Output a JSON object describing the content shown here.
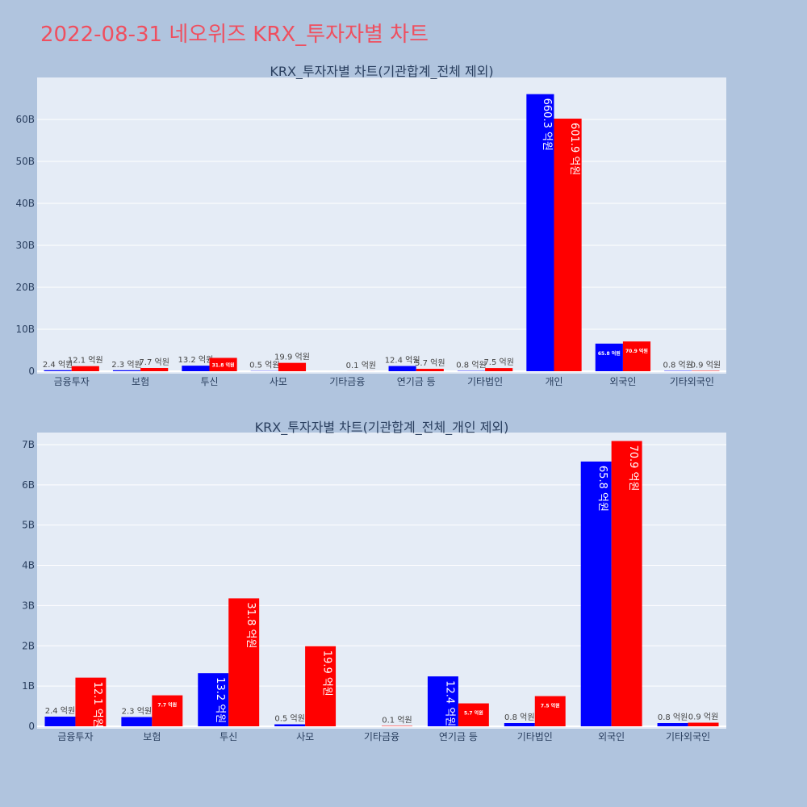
{
  "page": {
    "title": "2022-08-31 네오위즈 KRX_투자자별 차트"
  },
  "colors": {
    "background": "#b0c4de",
    "plot_bg": "#e5ecf6",
    "grid": "#ffffff",
    "series_a": "#0000ff",
    "series_b": "#ff0000",
    "title": "#ef4f5f"
  },
  "chart_data": [
    {
      "type": "bar",
      "title": "KRX_투자자별 차트(기관합계_전체 제외)",
      "categories": [
        "금융투자",
        "보험",
        "투신",
        "사모",
        "기타금융",
        "연기금 등",
        "기타법인",
        "개인",
        "외국인",
        "기타외국인"
      ],
      "ylim": [
        0,
        70
      ],
      "yticks": [
        "0",
        "10B",
        "20B",
        "30B",
        "40B",
        "50B",
        "60B"
      ],
      "series": [
        {
          "color": "#0000ff",
          "values": [
            0.24,
            0.23,
            1.32,
            0.05,
            0.0,
            1.24,
            0.08,
            66.03,
            6.58,
            0.08
          ],
          "labels": [
            "2.4 억원",
            "2.3 억원",
            "13.2 억원",
            "0.5 억원",
            "",
            "12.4 억원",
            "0.8 억원",
            "660.3 억원",
            "65.8 억원",
            "0.8 억원"
          ]
        },
        {
          "color": "#ff0000",
          "values": [
            1.21,
            0.77,
            3.18,
            1.99,
            0.01,
            0.57,
            0.75,
            60.19,
            7.09,
            0.09
          ],
          "labels": [
            "12.1 억원",
            "7.7 억원",
            "31.8 억원",
            "19.9 억원",
            "0.1 억원",
            "5.7 억원",
            "7.5 억원",
            "601.9 억원",
            "70.9 억원",
            "0.9 억원"
          ]
        }
      ]
    },
    {
      "type": "bar",
      "title": "KRX_투자자별 차트(기관합계_전체_개인 제외)",
      "categories": [
        "금융투자",
        "보험",
        "투신",
        "사모",
        "기타금융",
        "연기금 등",
        "기타법인",
        "외국인",
        "기타외국인"
      ],
      "ylim": [
        0,
        7.3
      ],
      "yticks": [
        "0",
        "1B",
        "2B",
        "3B",
        "4B",
        "5B",
        "6B",
        "7B"
      ],
      "series": [
        {
          "color": "#0000ff",
          "values": [
            0.24,
            0.23,
            1.32,
            0.05,
            0.0,
            1.24,
            0.08,
            6.58,
            0.08
          ],
          "labels": [
            "2.4 억원",
            "2.3 억원",
            "13.2 억원",
            "0.5 억원",
            "",
            "12.4 억원",
            "0.8 억원",
            "65.8 억원",
            "0.8 억원"
          ]
        },
        {
          "color": "#ff0000",
          "values": [
            1.21,
            0.77,
            3.18,
            1.99,
            0.01,
            0.57,
            0.75,
            7.09,
            0.09
          ],
          "labels": [
            "12.1 억원",
            "7.7 억원",
            "31.8 억원",
            "19.9 억원",
            "0.1 억원",
            "5.7 억원",
            "7.5 억원",
            "70.9 억원",
            "0.9 억원"
          ]
        }
      ]
    }
  ]
}
